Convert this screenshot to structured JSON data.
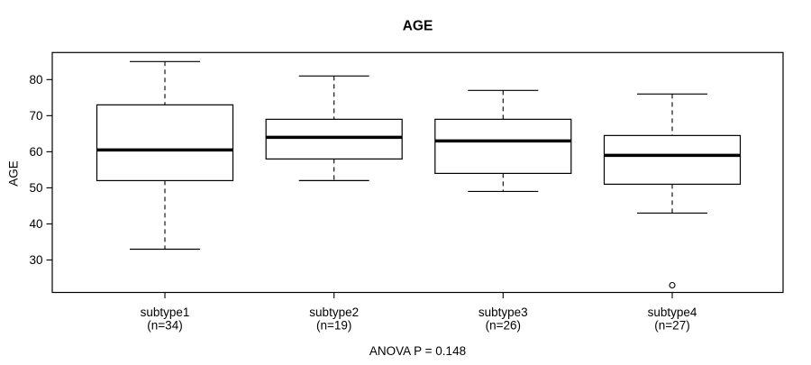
{
  "title": "AGE",
  "annotation": "ANOVA P = 0.148",
  "colors": {
    "foreground": "#000000",
    "background": "#ffffff"
  },
  "chart_data": {
    "type": "boxplot",
    "title": "AGE",
    "xlabel": "",
    "ylabel": "AGE",
    "annotation": "ANOVA P = 0.148",
    "ylim": [
      21,
      87.5
    ],
    "yticks": [
      30,
      40,
      50,
      60,
      70,
      80
    ],
    "grid": false,
    "legend": "none",
    "groups": [
      {
        "label": "subtype1",
        "n_label": "(n=34)",
        "n": 34,
        "whisker_low": 33,
        "q1": 52,
        "median": 60.5,
        "q3": 73,
        "whisker_high": 85,
        "outliers": []
      },
      {
        "label": "subtype2",
        "n_label": "(n=19)",
        "n": 19,
        "whisker_low": 52,
        "q1": 58,
        "median": 64,
        "q3": 69,
        "whisker_high": 81,
        "outliers": []
      },
      {
        "label": "subtype3",
        "n_label": "(n=26)",
        "n": 26,
        "whisker_low": 49,
        "q1": 54,
        "median": 63,
        "q3": 69,
        "whisker_high": 77,
        "outliers": []
      },
      {
        "label": "subtype4",
        "n_label": "(n=27)",
        "n": 27,
        "whisker_low": 43,
        "q1": 51,
        "median": 59,
        "q3": 64.5,
        "whisker_high": 76,
        "outliers": [
          23
        ]
      }
    ]
  }
}
